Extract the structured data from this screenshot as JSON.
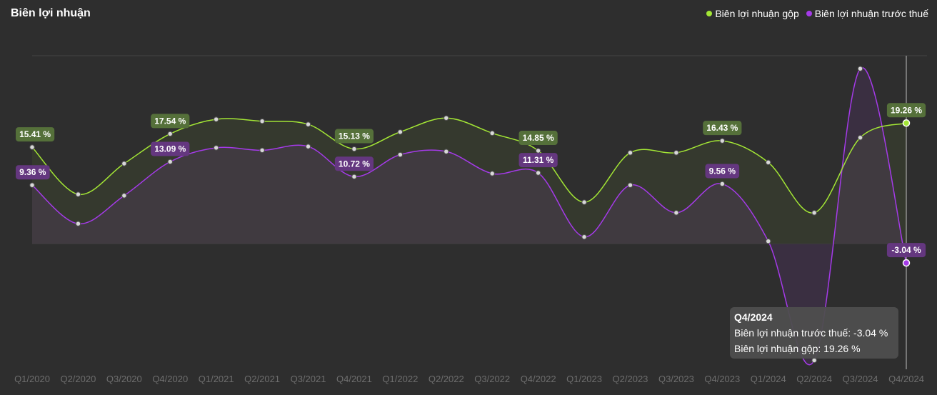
{
  "title": "Biên lợi nhuận",
  "colors": {
    "background": "#2e2e2e",
    "gross": "#a3e635",
    "pretax": "#a43ae8",
    "gross_label_bg": "#55703a",
    "pretax_label_bg": "#64377f",
    "axis_text": "#6e6e6e"
  },
  "tooltip": {
    "title": "Q4/2024",
    "row1_label": "Biên lợi nhuận trước thuế:",
    "row1_value": "-3.04 %",
    "row2_label": "Biên lợi nhuận gộp:",
    "row2_value": "19.26 %"
  },
  "chart_data": {
    "type": "line",
    "title": "Biên lợi nhuận",
    "categories": [
      "Q1/2020",
      "Q2/2020",
      "Q3/2020",
      "Q4/2020",
      "Q1/2021",
      "Q2/2021",
      "Q3/2021",
      "Q4/2021",
      "Q1/2022",
      "Q2/2022",
      "Q3/2022",
      "Q4/2022",
      "Q1/2023",
      "Q2/2023",
      "Q3/2023",
      "Q4/2023",
      "Q1/2024",
      "Q2/2024",
      "Q3/2024",
      "Q4/2024"
    ],
    "series": [
      {
        "name": "Biên lợi nhuận gộp",
        "color": "#a3e635",
        "values": [
          15.41,
          7.9,
          12.8,
          17.54,
          19.86,
          19.56,
          19.06,
          15.13,
          17.84,
          20.06,
          17.65,
          14.85,
          6.64,
          14.53,
          14.53,
          16.43,
          12.99,
          4.96,
          16.94,
          19.26
        ]
      },
      {
        "name": "Biên lợi nhuận trước thuế",
        "color": "#a43ae8",
        "values": [
          9.36,
          3.21,
          7.69,
          13.09,
          15.32,
          14.92,
          15.52,
          10.72,
          14.22,
          14.72,
          11.21,
          11.31,
          1.11,
          9.36,
          4.96,
          9.56,
          0.42,
          -18.57,
          27.93,
          -3.04
        ]
      }
    ],
    "point_labels": [
      {
        "series": 0,
        "index": 0,
        "text": "15.41 %"
      },
      {
        "series": 0,
        "index": 3,
        "text": "17.54 %"
      },
      {
        "series": 0,
        "index": 7,
        "text": "15.13 %"
      },
      {
        "series": 0,
        "index": 11,
        "text": "14.85 %"
      },
      {
        "series": 0,
        "index": 15,
        "text": "16.43 %"
      },
      {
        "series": 0,
        "index": 19,
        "text": "19.26 %"
      },
      {
        "series": 1,
        "index": 0,
        "text": "9.36 %"
      },
      {
        "series": 1,
        "index": 3,
        "text": "13.09 %"
      },
      {
        "series": 1,
        "index": 7,
        "text": "10.72 %"
      },
      {
        "series": 1,
        "index": 11,
        "text": "11.31 %"
      },
      {
        "series": 1,
        "index": 15,
        "text": "9.56 %"
      },
      {
        "series": 1,
        "index": 19,
        "text": "-3.04 %"
      }
    ],
    "ylim": [
      -20,
      30
    ],
    "zero_line": true,
    "highlight_index": 19,
    "legend_position": "top-right",
    "grid": false
  }
}
